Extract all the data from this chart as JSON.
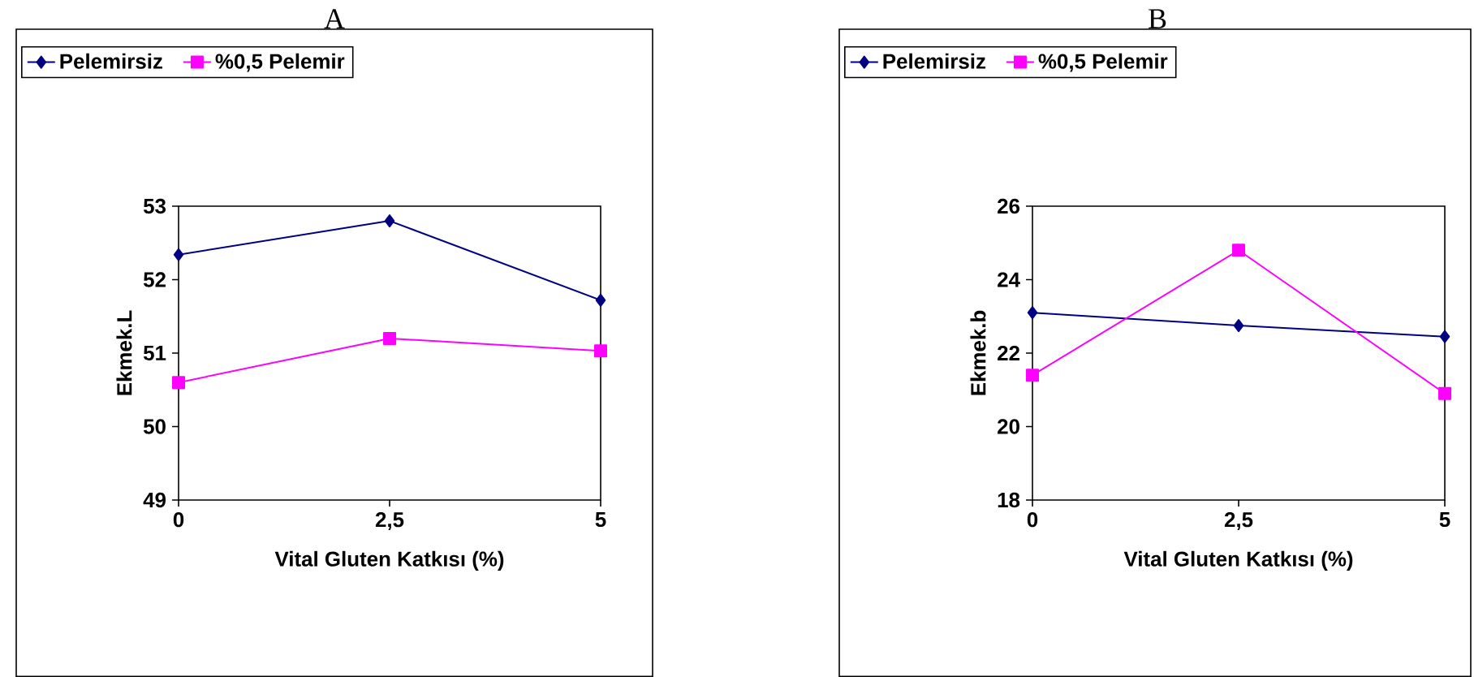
{
  "chart_data": [
    {
      "type": "line",
      "title": "A",
      "xlabel": "Vital Gluten Katkısı (%)",
      "ylabel": "Ekmek.L",
      "categories": [
        "0",
        "2,5",
        "5"
      ],
      "ylim": [
        49,
        53
      ],
      "yticks": [
        49,
        50,
        51,
        52,
        53
      ],
      "legend": "top",
      "series": [
        {
          "name": "Pelemirsiz",
          "color": "#000080",
          "marker": "diamond",
          "values": [
            52.34,
            52.8,
            51.72
          ]
        },
        {
          "name": "%0,5 Pelemir",
          "color": "#ff00ff",
          "marker": "square",
          "values": [
            50.6,
            51.2,
            51.03
          ]
        }
      ]
    },
    {
      "type": "line",
      "title": "B",
      "xlabel": "Vital Gluten Katkısı (%)",
      "ylabel": "Ekmek.b",
      "categories": [
        "0",
        "2,5",
        "5"
      ],
      "ylim": [
        18,
        26
      ],
      "yticks": [
        18,
        20,
        22,
        24,
        26
      ],
      "legend": "top",
      "series": [
        {
          "name": "Pelemirsiz",
          "color": "#000080",
          "marker": "diamond",
          "values": [
            23.1,
            22.75,
            22.45
          ]
        },
        {
          "name": "%0,5 Pelemir",
          "color": "#ff00ff",
          "marker": "square",
          "values": [
            21.4,
            24.8,
            20.9
          ]
        }
      ]
    }
  ]
}
